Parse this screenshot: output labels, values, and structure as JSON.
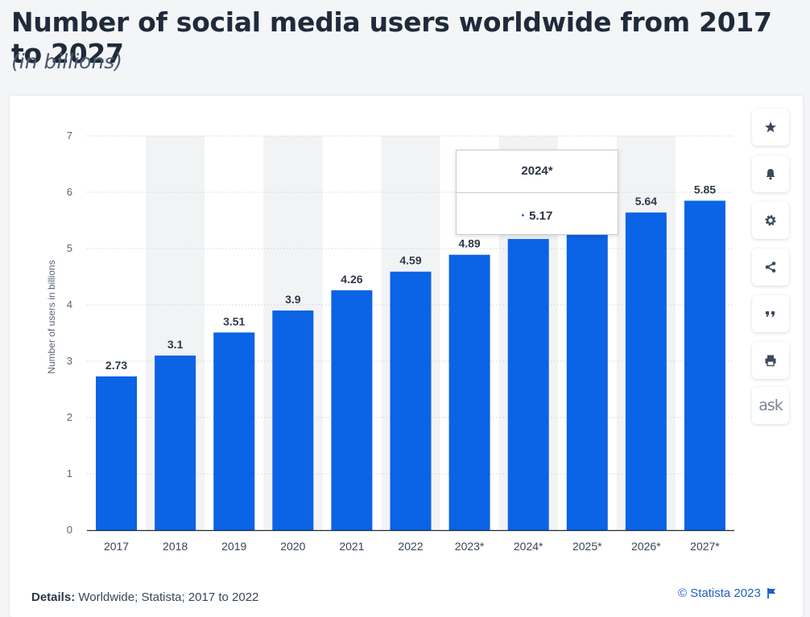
{
  "header": {
    "title": "Number of social media users worldwide from 2017 to 2027",
    "subtitle": "(in billions)"
  },
  "chart_data": {
    "type": "bar",
    "ylabel": "Number of users in billions",
    "xlabel": "",
    "ylim": [
      0,
      7
    ],
    "yticks": [
      0,
      1,
      2,
      3,
      4,
      5,
      6,
      7
    ],
    "grid": "horizontal dotted",
    "bar_color": "#0b63e5",
    "categories": [
      "2017",
      "2018",
      "2019",
      "2020",
      "2021",
      "2022",
      "2023*",
      "2024*",
      "2025*",
      "2026*",
      "2027*"
    ],
    "values": [
      2.73,
      3.1,
      3.51,
      3.9,
      4.26,
      4.59,
      4.89,
      5.17,
      5.42,
      5.64,
      5.85
    ],
    "value_labels": [
      "2.73",
      "3.1",
      "3.51",
      "3.9",
      "4.26",
      "4.59",
      "4.89",
      "",
      "",
      "5.64",
      "5.85"
    ],
    "banded_categories": [
      "2018",
      "2019",
      "2020",
      "2021",
      "2022",
      "2023*",
      "2024*",
      "2025*",
      "2026*",
      "2027*"
    ]
  },
  "tooltip": {
    "category": "2024*",
    "value": "5.17",
    "dot": "•"
  },
  "toolbar": {
    "buttons": [
      {
        "name": "favorite-button",
        "icon": "star-icon"
      },
      {
        "name": "notification-button",
        "icon": "bell-icon"
      },
      {
        "name": "settings-button",
        "icon": "gear-icon"
      },
      {
        "name": "share-button",
        "icon": "share-icon"
      },
      {
        "name": "cite-button",
        "icon": "quote-icon"
      },
      {
        "name": "print-button",
        "icon": "print-icon"
      },
      {
        "name": "ask-button",
        "icon": "ask-icon",
        "label": "ask"
      }
    ]
  },
  "footer": {
    "details_label": "Details:",
    "details_text": " Worldwide; Statista; 2017 to 2022",
    "credit": "© Statista 2023"
  }
}
